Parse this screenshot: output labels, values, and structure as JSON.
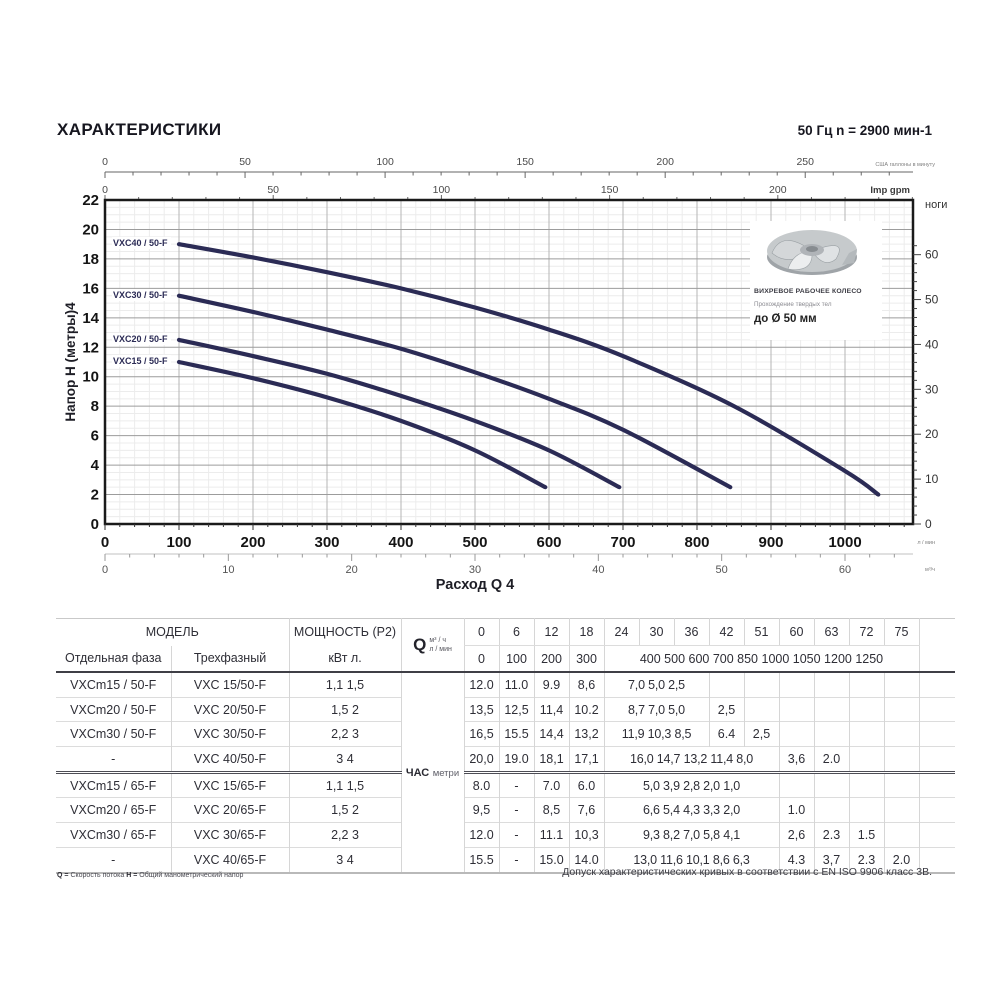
{
  "header": {
    "title": "ХАРАКТЕРИСТИКИ",
    "frequency": "50 Гц n = 2900 мин-1"
  },
  "chart_data": {
    "type": "line",
    "xlabel": "Расход Q 4",
    "ylabel": "Напор Н (метры)4",
    "x_range_lpm": [
      0,
      1092
    ],
    "y_range_m": [
      0,
      22
    ],
    "grid": "on",
    "curve_color": "#2b2b55",
    "axes": {
      "us_gpm": {
        "label": "США галлоны в минуту",
        "ticks": [
          0,
          50,
          100,
          150,
          200,
          250
        ],
        "minor_step": 10,
        "lpm_per_unit": 3.785
      },
      "imp_gpm": {
        "label": "Imp gpm",
        "ticks": [
          0,
          50,
          100,
          150,
          200
        ],
        "minor_step": 10,
        "lpm_per_unit": 4.546
      },
      "lpm": {
        "label": "л / мин",
        "ticks": [
          0,
          100,
          200,
          300,
          400,
          500,
          600,
          700,
          800,
          900,
          1000
        ],
        "minor_step": 20
      },
      "m3h": {
        "label": "м³/ч",
        "ticks": [
          0,
          10,
          20,
          30,
          40,
          50,
          60
        ],
        "minor_step": 2,
        "lpm_per_unit": 16.6667
      },
      "meters": {
        "label": "Напор Н (метры)4",
        "ticks": [
          0,
          2,
          4,
          6,
          8,
          10,
          12,
          14,
          16,
          18,
          20,
          22
        ],
        "minor_step": 0.5
      },
      "feet": {
        "label": "ноги",
        "ticks": [
          0,
          10,
          20,
          30,
          40,
          50,
          60
        ],
        "minor_step": 2,
        "m_per_unit": 0.3048
      }
    },
    "series": [
      {
        "name": "VXC40 / 50-F",
        "points": [
          [
            100,
            19
          ],
          [
            200,
            18.1
          ],
          [
            300,
            17.1
          ],
          [
            400,
            16
          ],
          [
            500,
            14.7
          ],
          [
            600,
            13.2
          ],
          [
            700,
            11.4
          ],
          [
            850,
            8.0
          ],
          [
            1000,
            3.6
          ],
          [
            1045,
            2.0
          ]
        ]
      },
      {
        "name": "VXC30 / 50-F",
        "points": [
          [
            100,
            15.5
          ],
          [
            200,
            14.4
          ],
          [
            300,
            13.2
          ],
          [
            400,
            11.9
          ],
          [
            500,
            10.3
          ],
          [
            600,
            8.5
          ],
          [
            700,
            6.4
          ],
          [
            845,
            2.5
          ]
        ]
      },
      {
        "name": "VXC20 / 50-F",
        "points": [
          [
            100,
            12.5
          ],
          [
            200,
            11.4
          ],
          [
            300,
            10.2
          ],
          [
            400,
            8.7
          ],
          [
            500,
            7.0
          ],
          [
            600,
            5.0
          ],
          [
            695,
            2.5
          ]
        ]
      },
      {
        "name": "VXC15 / 50-F",
        "points": [
          [
            100,
            11.0
          ],
          [
            200,
            9.9
          ],
          [
            300,
            8.6
          ],
          [
            400,
            7.0
          ],
          [
            500,
            5.0
          ],
          [
            595,
            2.5
          ]
        ]
      }
    ]
  },
  "impeller": {
    "title": "ВИХРЕВОЕ РАБОЧЕЕ КОЛЕСО",
    "subtitle": "Прохождение твердых тел",
    "size": "до Ø 50 мм"
  },
  "table": {
    "headers": {
      "model": "МОДЕЛЬ",
      "single_phase": "Отдельная фаза",
      "three_phase": "Трехфазный",
      "power": "МОЩНОСТЬ (P2)",
      "power_units": "кВт л.",
      "q": "Q",
      "m3h": "м³ / ч",
      "lpm": "л / мин",
      "head_bold": "ЧАС",
      "head_small": "метри",
      "m3h_values": [
        "0",
        "6",
        "12",
        "18",
        "24",
        "30",
        "36",
        "42",
        "51",
        "60",
        "63",
        "72",
        "75"
      ],
      "lpm_values_fixed": [
        "0",
        "100",
        "200",
        "300"
      ],
      "lpm_values_squeezed": "400 500 600 700 850 1000 1050 1200 1250"
    },
    "rows": [
      {
        "single": "VXCm15 / 50-F",
        "three": "VXC 15/50-F",
        "power": "1,1 1,5",
        "cells": [
          {
            "col": 0,
            "text": "12.0"
          },
          {
            "col": 1,
            "text": "11.0"
          },
          {
            "col": 2,
            "text": "9.9"
          },
          {
            "col": 3,
            "text": "8,6"
          },
          {
            "col": 4,
            "span": 3,
            "text": "7,0 5,0 2,5"
          }
        ]
      },
      {
        "single": "VXCm20 / 50-F",
        "three": "VXC 20/50-F",
        "power": "1,5 2",
        "cells": [
          {
            "col": 0,
            "text": "13,5"
          },
          {
            "col": 1,
            "text": "12,5"
          },
          {
            "col": 2,
            "text": "11,4"
          },
          {
            "col": 3,
            "text": "10.2"
          },
          {
            "col": 4,
            "span": 3,
            "text": "8,7 7,0 5,0"
          },
          {
            "col": 7,
            "text": "2,5"
          }
        ]
      },
      {
        "single": "VXCm30 / 50-F",
        "three": "VXC 30/50-F",
        "power": "2,2 3",
        "cells": [
          {
            "col": 0,
            "text": "16,5"
          },
          {
            "col": 1,
            "text": "15.5"
          },
          {
            "col": 2,
            "text": "14,4"
          },
          {
            "col": 3,
            "text": "13,2"
          },
          {
            "col": 4,
            "span": 3,
            "text": "11,9 10,3 8,5"
          },
          {
            "col": 7,
            "text": "6.4"
          },
          {
            "col": 8,
            "text": "2,5"
          }
        ]
      },
      {
        "single": "-",
        "three": "VXC 40/50-F",
        "power": "3 4",
        "cells": [
          {
            "col": 0,
            "text": "20,0"
          },
          {
            "col": 1,
            "text": "19.0"
          },
          {
            "col": 2,
            "text": "18,1"
          },
          {
            "col": 3,
            "text": "17,1"
          },
          {
            "col": 4,
            "span": 5,
            "text": "16,0 14,7 13,2 11,4 8,0"
          },
          {
            "col": 9,
            "text": "3,6"
          },
          {
            "col": 10,
            "text": "2.0"
          }
        ]
      },
      {
        "single": "VXCm15 / 65-F",
        "three": "VXC 15/65-F",
        "power": "1,1 1,5",
        "new_group": true,
        "cells": [
          {
            "col": 0,
            "text": "8.0"
          },
          {
            "col": 1,
            "text": "-"
          },
          {
            "col": 2,
            "text": "7.0"
          },
          {
            "col": 3,
            "text": "6.0"
          },
          {
            "col": 4,
            "span": 5,
            "text": "5,0 3,9 2,8 2,0 1,0"
          }
        ]
      },
      {
        "single": "VXCm20 / 65-F",
        "three": "VXC 20/65-F",
        "power": "1,5 2",
        "cells": [
          {
            "col": 0,
            "text": "9,5"
          },
          {
            "col": 1,
            "text": "-"
          },
          {
            "col": 2,
            "text": "8,5"
          },
          {
            "col": 3,
            "text": "7,6"
          },
          {
            "col": 4,
            "span": 5,
            "text": "6,6 5,4 4,3 3,3 2,0"
          },
          {
            "col": 9,
            "text": "1.0"
          }
        ]
      },
      {
        "single": "VXCm30 / 65-F",
        "three": "VXC 30/65-F",
        "power": "2,2 3",
        "cells": [
          {
            "col": 0,
            "text": "12.0"
          },
          {
            "col": 1,
            "text": "-"
          },
          {
            "col": 2,
            "text": "11.1"
          },
          {
            "col": 3,
            "text": "10,3"
          },
          {
            "col": 4,
            "span": 5,
            "text": "9,3 8,2 7,0 5,8 4,1"
          },
          {
            "col": 9,
            "text": "2,6"
          },
          {
            "col": 10,
            "text": "2.3"
          },
          {
            "col": 11,
            "text": "1.5"
          }
        ]
      },
      {
        "single": "-",
        "three": "VXC 40/65-F",
        "power": "3 4",
        "cells": [
          {
            "col": 0,
            "text": "15.5"
          },
          {
            "col": 1,
            "text": "-"
          },
          {
            "col": 2,
            "text": "15.0"
          },
          {
            "col": 3,
            "text": "14.0"
          },
          {
            "col": 4,
            "span": 5,
            "text": "13,0 11,6 10,1 8,6 6,3"
          },
          {
            "col": 9,
            "text": "4.3"
          },
          {
            "col": 10,
            "text": "3,7"
          },
          {
            "col": 11,
            "text": "2.3"
          },
          {
            "col": 12,
            "text": "2.0"
          }
        ]
      }
    ]
  },
  "footer": {
    "q_label": "Q =",
    "q_text": "Скорость потока",
    "h_label": "H =",
    "h_text": "Общий манометрический напор",
    "tolerance": "Допуск характеристических кривых в соответствии с EN ISO 9906 класс 3В."
  }
}
